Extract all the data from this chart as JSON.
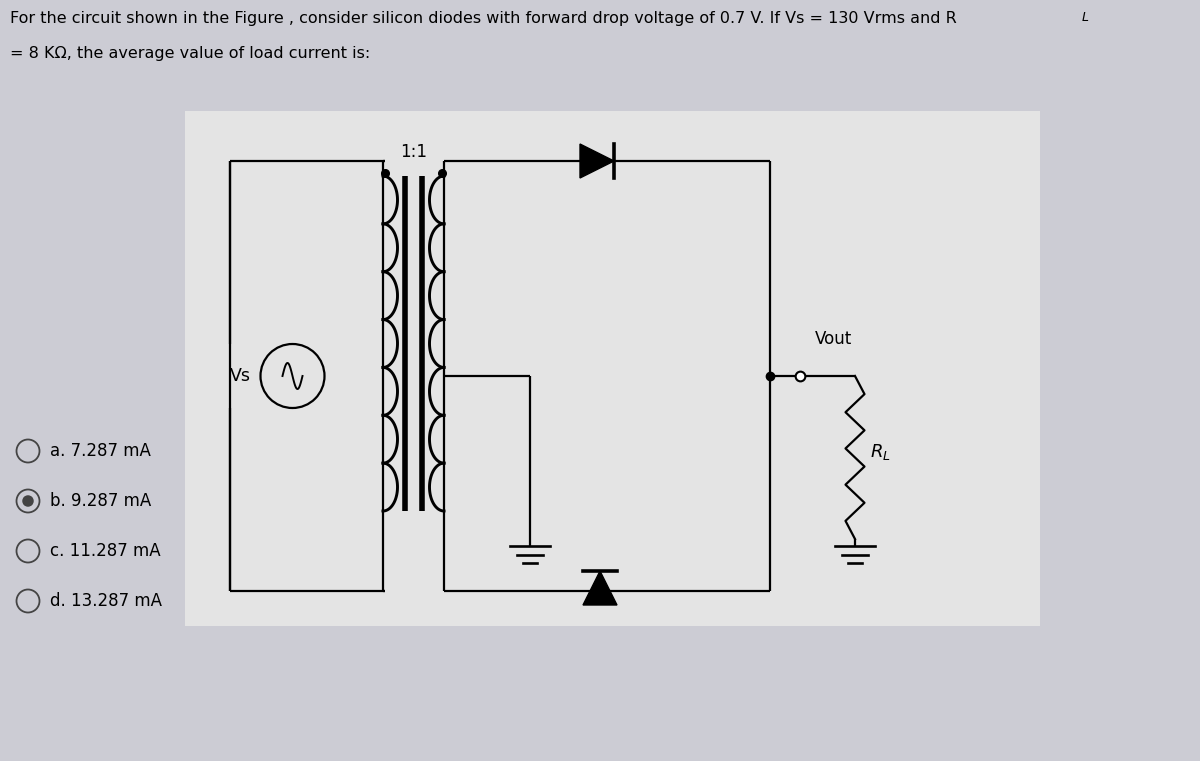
{
  "bg_color": "#ccccd4",
  "circuit_bg": "#e8e8e8",
  "question_line1": "For the circuit shown in the Figure , consider silicon diodes with forward drop voltage of 0.7 V. If Vs = 130 Vrms and R",
  "question_line1_sub": "L",
  "question_line2": "= 8 KΩ, the average value of load current is:",
  "circuit_label": "1:1",
  "vs_label": "Vs",
  "vout_label": "Vout",
  "rl_label": "R_L",
  "options": [
    "a. 7.287 mA",
    "b. 9.287 mA",
    "c. 11.287 mA",
    "d. 13.287 mA"
  ],
  "selected_option": 1,
  "line_color": "#000000",
  "fig_width": 12.0,
  "fig_height": 7.61
}
